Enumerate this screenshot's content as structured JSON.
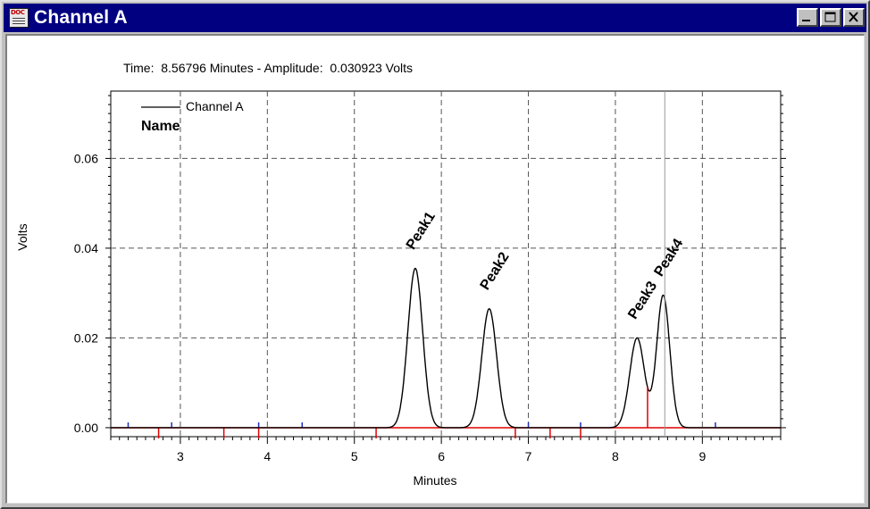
{
  "window": {
    "title": "Channel A",
    "icon": "doc-icon",
    "controls": [
      "minimize-icon",
      "maximize-icon",
      "close-icon"
    ]
  },
  "status": {
    "text": "Time:  8.56796 Minutes - Amplitude:  0.030923 Volts"
  },
  "chart_data": {
    "type": "line",
    "title": "",
    "xlabel": "Minutes",
    "ylabel": "Volts",
    "xlim": [
      2.2,
      9.9
    ],
    "ylim": [
      -0.002,
      0.075
    ],
    "x_ticks": [
      3,
      4,
      5,
      6,
      7,
      8,
      9
    ],
    "x_tick_labels": [
      "3",
      "4",
      "5",
      "6",
      "7",
      "8",
      "9"
    ],
    "y_ticks": [
      0.0,
      0.02,
      0.04,
      0.06
    ],
    "y_tick_labels": [
      "0.00",
      "0.02",
      "0.04",
      "0.06"
    ],
    "grid": true,
    "legend": {
      "placement": "top-left",
      "entries": [
        "Channel A"
      ],
      "subtitle": "Name"
    },
    "cursor_x": 8.568,
    "series": [
      {
        "name": "Channel A",
        "color": "#000000",
        "baseline": 0.0,
        "peaks": [
          {
            "label": "Peak1",
            "center": 5.7,
            "height": 0.0355,
            "width": 0.085
          },
          {
            "label": "Peak2",
            "center": 6.55,
            "height": 0.0265,
            "width": 0.085
          },
          {
            "label": "Peak3",
            "center": 8.25,
            "height": 0.02,
            "width": 0.085
          },
          {
            "label": "Peak4",
            "center": 8.55,
            "height": 0.0295,
            "width": 0.075
          }
        ]
      }
    ],
    "integration": {
      "color": "#e00000",
      "baseline_segments": [
        [
          2.2,
          6.1
        ],
        [
          6.1,
          9.9
        ]
      ],
      "drop_lines": [
        8.37
      ],
      "tick_marks_down": [
        2.75,
        3.5,
        3.9,
        5.25,
        6.85,
        7.25,
        7.6
      ],
      "tick_marks_blue": [
        2.4,
        2.9,
        3.9,
        4.4,
        7.0,
        7.6,
        9.15
      ]
    }
  }
}
